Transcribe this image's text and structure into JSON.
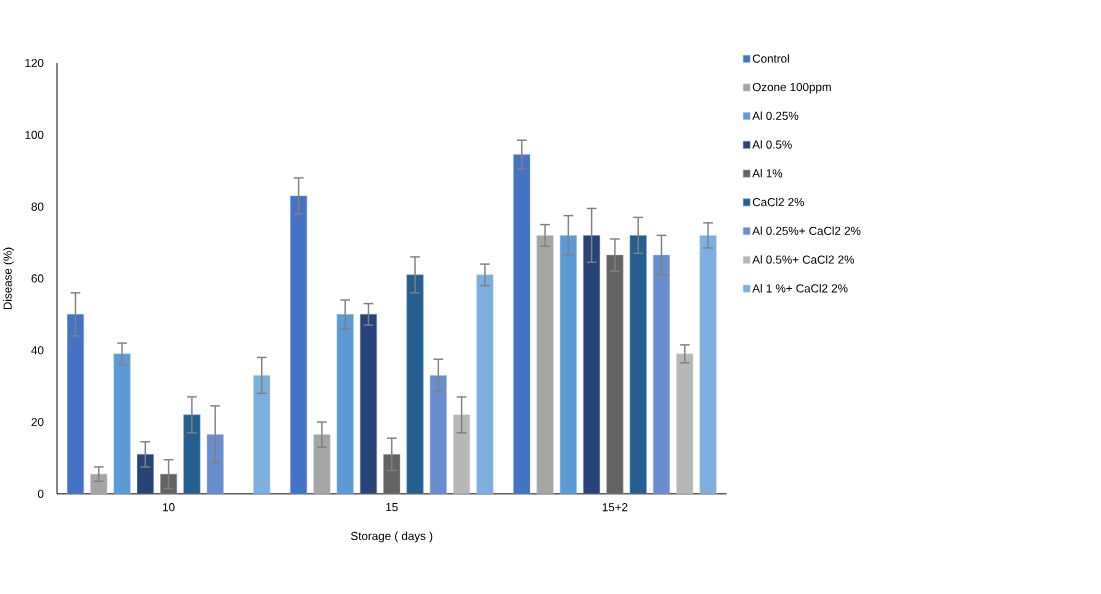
{
  "chart_data": {
    "type": "bar",
    "xlabel": "Storage ( days )",
    "ylabel": "Disease (%)",
    "categories": [
      "10",
      "15",
      "15+2"
    ],
    "ylim": [
      0,
      120
    ],
    "yticks": [
      0,
      20,
      40,
      60,
      80,
      100,
      120
    ],
    "grid": false,
    "legend": "right",
    "series": [
      {
        "name": "Control",
        "color": "#4472c4",
        "values": [
          50,
          83,
          94.5
        ],
        "errors": [
          6,
          5,
          4
        ]
      },
      {
        "name": "Ozone 100ppm",
        "color": "#a5a5a5",
        "values": [
          5.5,
          16.5,
          72
        ],
        "errors": [
          2,
          3.5,
          3
        ]
      },
      {
        "name": "Al 0.25%",
        "color": "#5b9bd5",
        "values": [
          39,
          50,
          72
        ],
        "errors": [
          3,
          4,
          5.5
        ]
      },
      {
        "name": "Al 0.5%",
        "color": "#264478",
        "values": [
          11,
          50,
          72
        ],
        "errors": [
          3.5,
          3,
          7.5
        ]
      },
      {
        "name": "Al 1%",
        "color": "#636363",
        "values": [
          5.5,
          11,
          66.5
        ],
        "errors": [
          4,
          4.5,
          4.5
        ]
      },
      {
        "name": "CaCl2 2%",
        "color": "#255e91",
        "values": [
          22,
          61,
          72
        ],
        "errors": [
          5,
          5,
          5
        ]
      },
      {
        "name": "Al 0.25%+ CaCl2 2%",
        "color": "#698ed0",
        "values": [
          16.5,
          33,
          66.5
        ],
        "errors": [
          8,
          4.5,
          5.5
        ]
      },
      {
        "name": "Al 0.5%+ CaCl2 2%",
        "color": "#b7b7b7",
        "values": [
          null,
          22,
          39
        ],
        "errors": [
          null,
          5,
          2.5
        ]
      },
      {
        "name": "Al 1 %+ CaCl2 2%",
        "color": "#7cafdd",
        "values": [
          33,
          61,
          72
        ],
        "errors": [
          5,
          3,
          3.5
        ]
      }
    ]
  }
}
